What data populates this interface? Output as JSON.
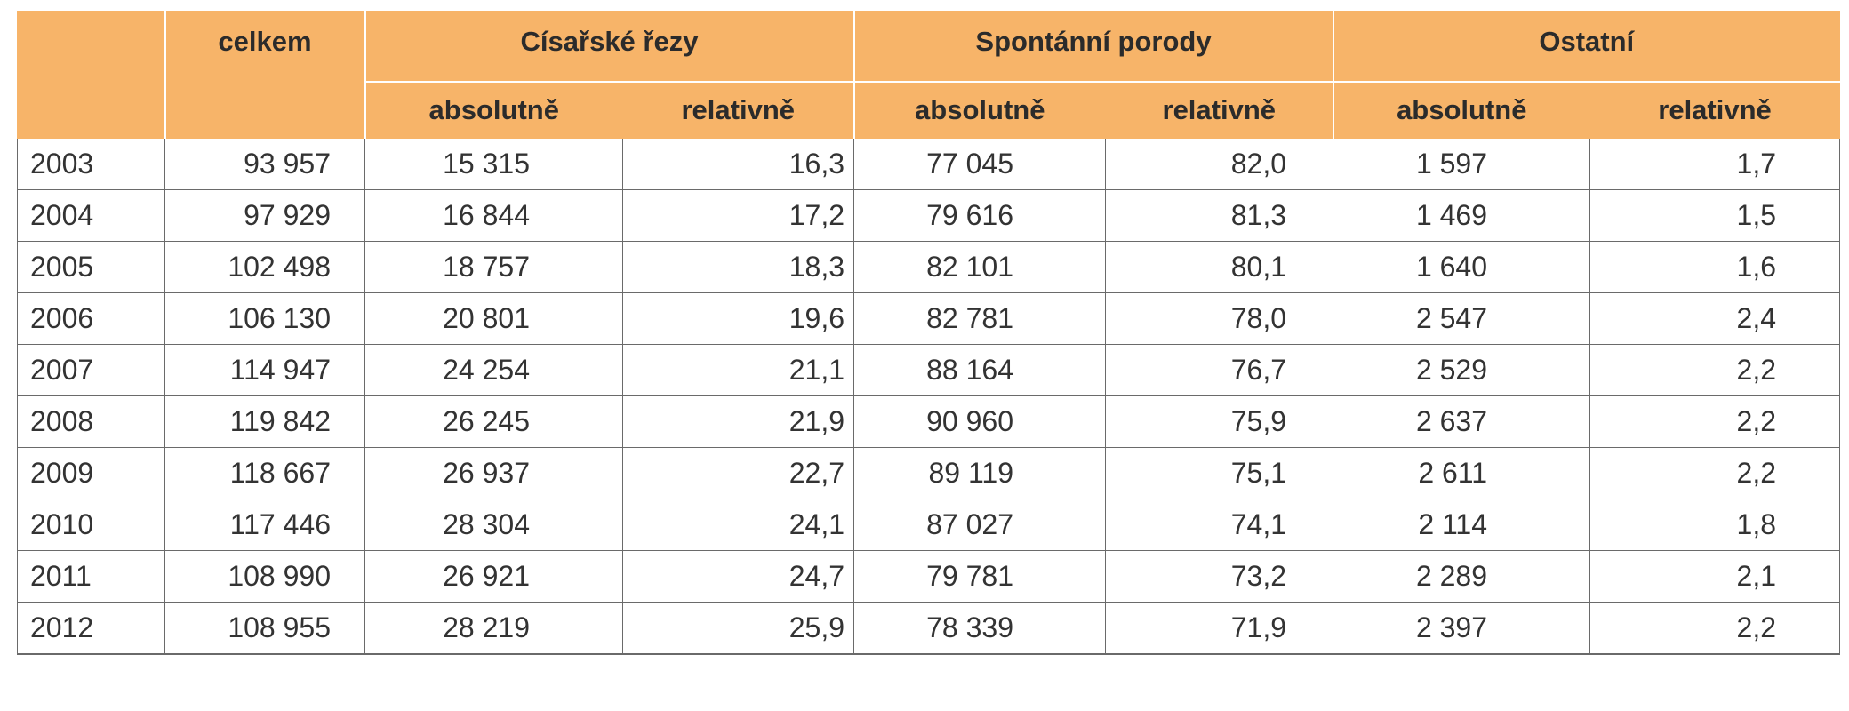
{
  "header": {
    "celkem": "celkem",
    "cisarske": "Císařské řezy",
    "spontanni": "Spontánní porody",
    "ostatni": "Ostatní",
    "absolutne": "absolutně",
    "relativne": "relativně"
  },
  "rows": [
    [
      "2003",
      "93 957",
      "15 315",
      "16,3",
      "77 045",
      "82,0",
      "1 597",
      "1,7"
    ],
    [
      "2004",
      "97 929",
      "16 844",
      "17,2",
      "79 616",
      "81,3",
      "1 469",
      "1,5"
    ],
    [
      "2005",
      "102 498",
      "18 757",
      "18,3",
      "82 101",
      "80,1",
      "1 640",
      "1,6"
    ],
    [
      "2006",
      "106 130",
      "20 801",
      "19,6",
      "82 781",
      "78,0",
      "2 547",
      "2,4"
    ],
    [
      "2007",
      "114 947",
      "24 254",
      "21,1",
      "88 164",
      "76,7",
      "2 529",
      "2,2"
    ],
    [
      "2008",
      "119 842",
      "26 245",
      "21,9",
      "90 960",
      "75,9",
      "2 637",
      "2,2"
    ],
    [
      "2009",
      "118 667",
      "26 937",
      "22,7",
      "89 119",
      "75,1",
      "2 611",
      "2,2"
    ],
    [
      "2010",
      "117 446",
      "28 304",
      "24,1",
      "87 027",
      "74,1",
      "2 114",
      "1,8"
    ],
    [
      "2011",
      "108 990",
      "26 921",
      "24,7",
      "79 781",
      "73,2",
      "2 289",
      "2,1"
    ],
    [
      "2012",
      "108 955",
      "28 219",
      "25,9",
      "78 339",
      "71,9",
      "2 397",
      "2,2"
    ]
  ]
}
